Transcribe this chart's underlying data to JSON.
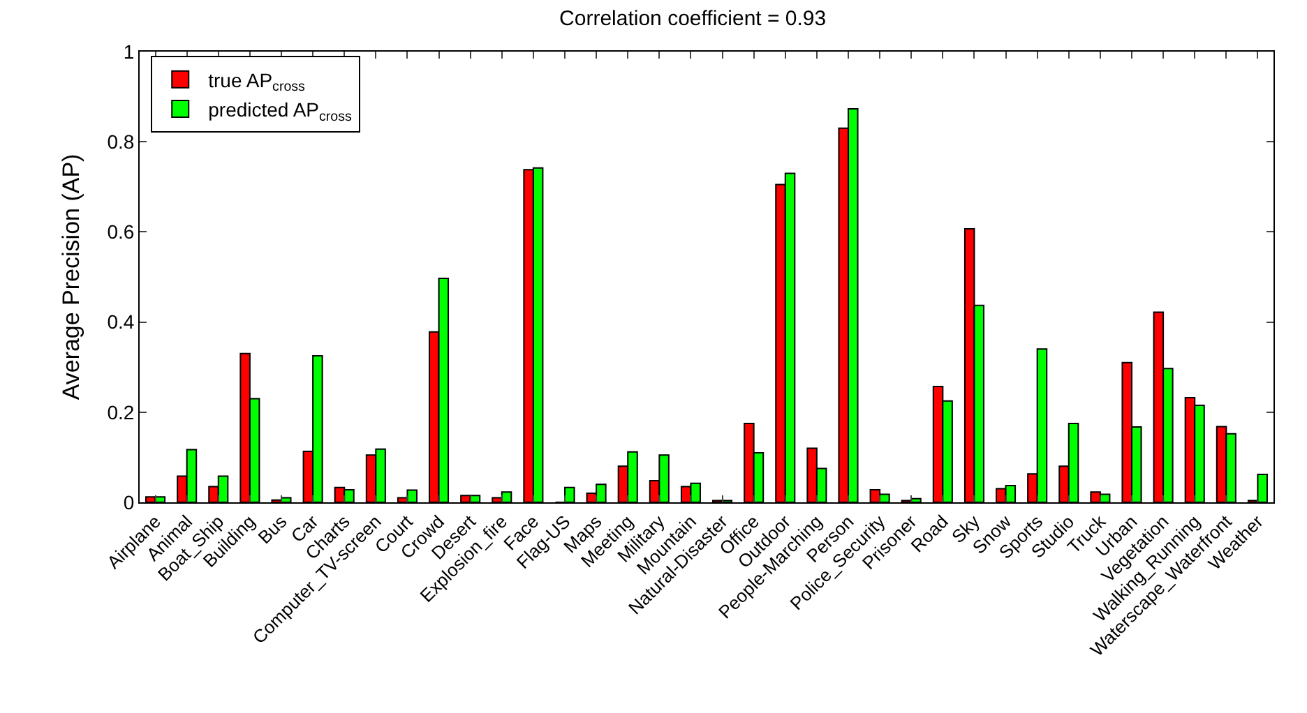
{
  "chart_data": {
    "type": "bar",
    "title": "Correlation coefficient = 0.93",
    "ylabel": "Average Precision (AP)",
    "categories": [
      "Airplane",
      "Animal",
      "Boat_Ship",
      "Building",
      "Bus",
      "Car",
      "Charts",
      "Computer_TV-screen",
      "Court",
      "Crowd",
      "Desert",
      "Explosion_fire",
      "Face",
      "Flag-US",
      "Maps",
      "Meeting",
      "Military",
      "Mountain",
      "Natural-Disaster",
      "Office",
      "Outdoor",
      "People-Marching",
      "Person",
      "Police_Security",
      "Prisoner",
      "Road",
      "Sky",
      "Snow",
      "Sports",
      "Studio",
      "Truck",
      "Urban",
      "Vegetation",
      "Walking_Running",
      "Waterscape_Waterfront",
      "Weather"
    ],
    "series": [
      {
        "name": "true AP$_{cross}$",
        "color": "#ff0000",
        "values": [
          0.012,
          0.058,
          0.035,
          0.33,
          0.005,
          0.113,
          0.033,
          0.105,
          0.01,
          0.378,
          0.015,
          0.01,
          0.738,
          0.0,
          0.02,
          0.08,
          0.048,
          0.035,
          0.004,
          0.175,
          0.705,
          0.12,
          0.83,
          0.028,
          0.004,
          0.257,
          0.607,
          0.03,
          0.063,
          0.08,
          0.023,
          0.31,
          0.422,
          0.232,
          0.168,
          0.004
        ]
      },
      {
        "name": "predicted AP$_{cross}$",
        "color": "#00ff00",
        "values": [
          0.012,
          0.117,
          0.058,
          0.23,
          0.01,
          0.325,
          0.028,
          0.118,
          0.027,
          0.497,
          0.015,
          0.023,
          0.742,
          0.033,
          0.04,
          0.112,
          0.105,
          0.042,
          0.004,
          0.11,
          0.73,
          0.075,
          0.873,
          0.018,
          0.008,
          0.225,
          0.437,
          0.037,
          0.34,
          0.175,
          0.018,
          0.167,
          0.297,
          0.215,
          0.152,
          0.062
        ]
      }
    ],
    "ylim": [
      0,
      1
    ],
    "yticks": [
      0,
      0.2,
      0.4,
      0.6,
      0.8,
      1
    ],
    "legend": "top left"
  }
}
